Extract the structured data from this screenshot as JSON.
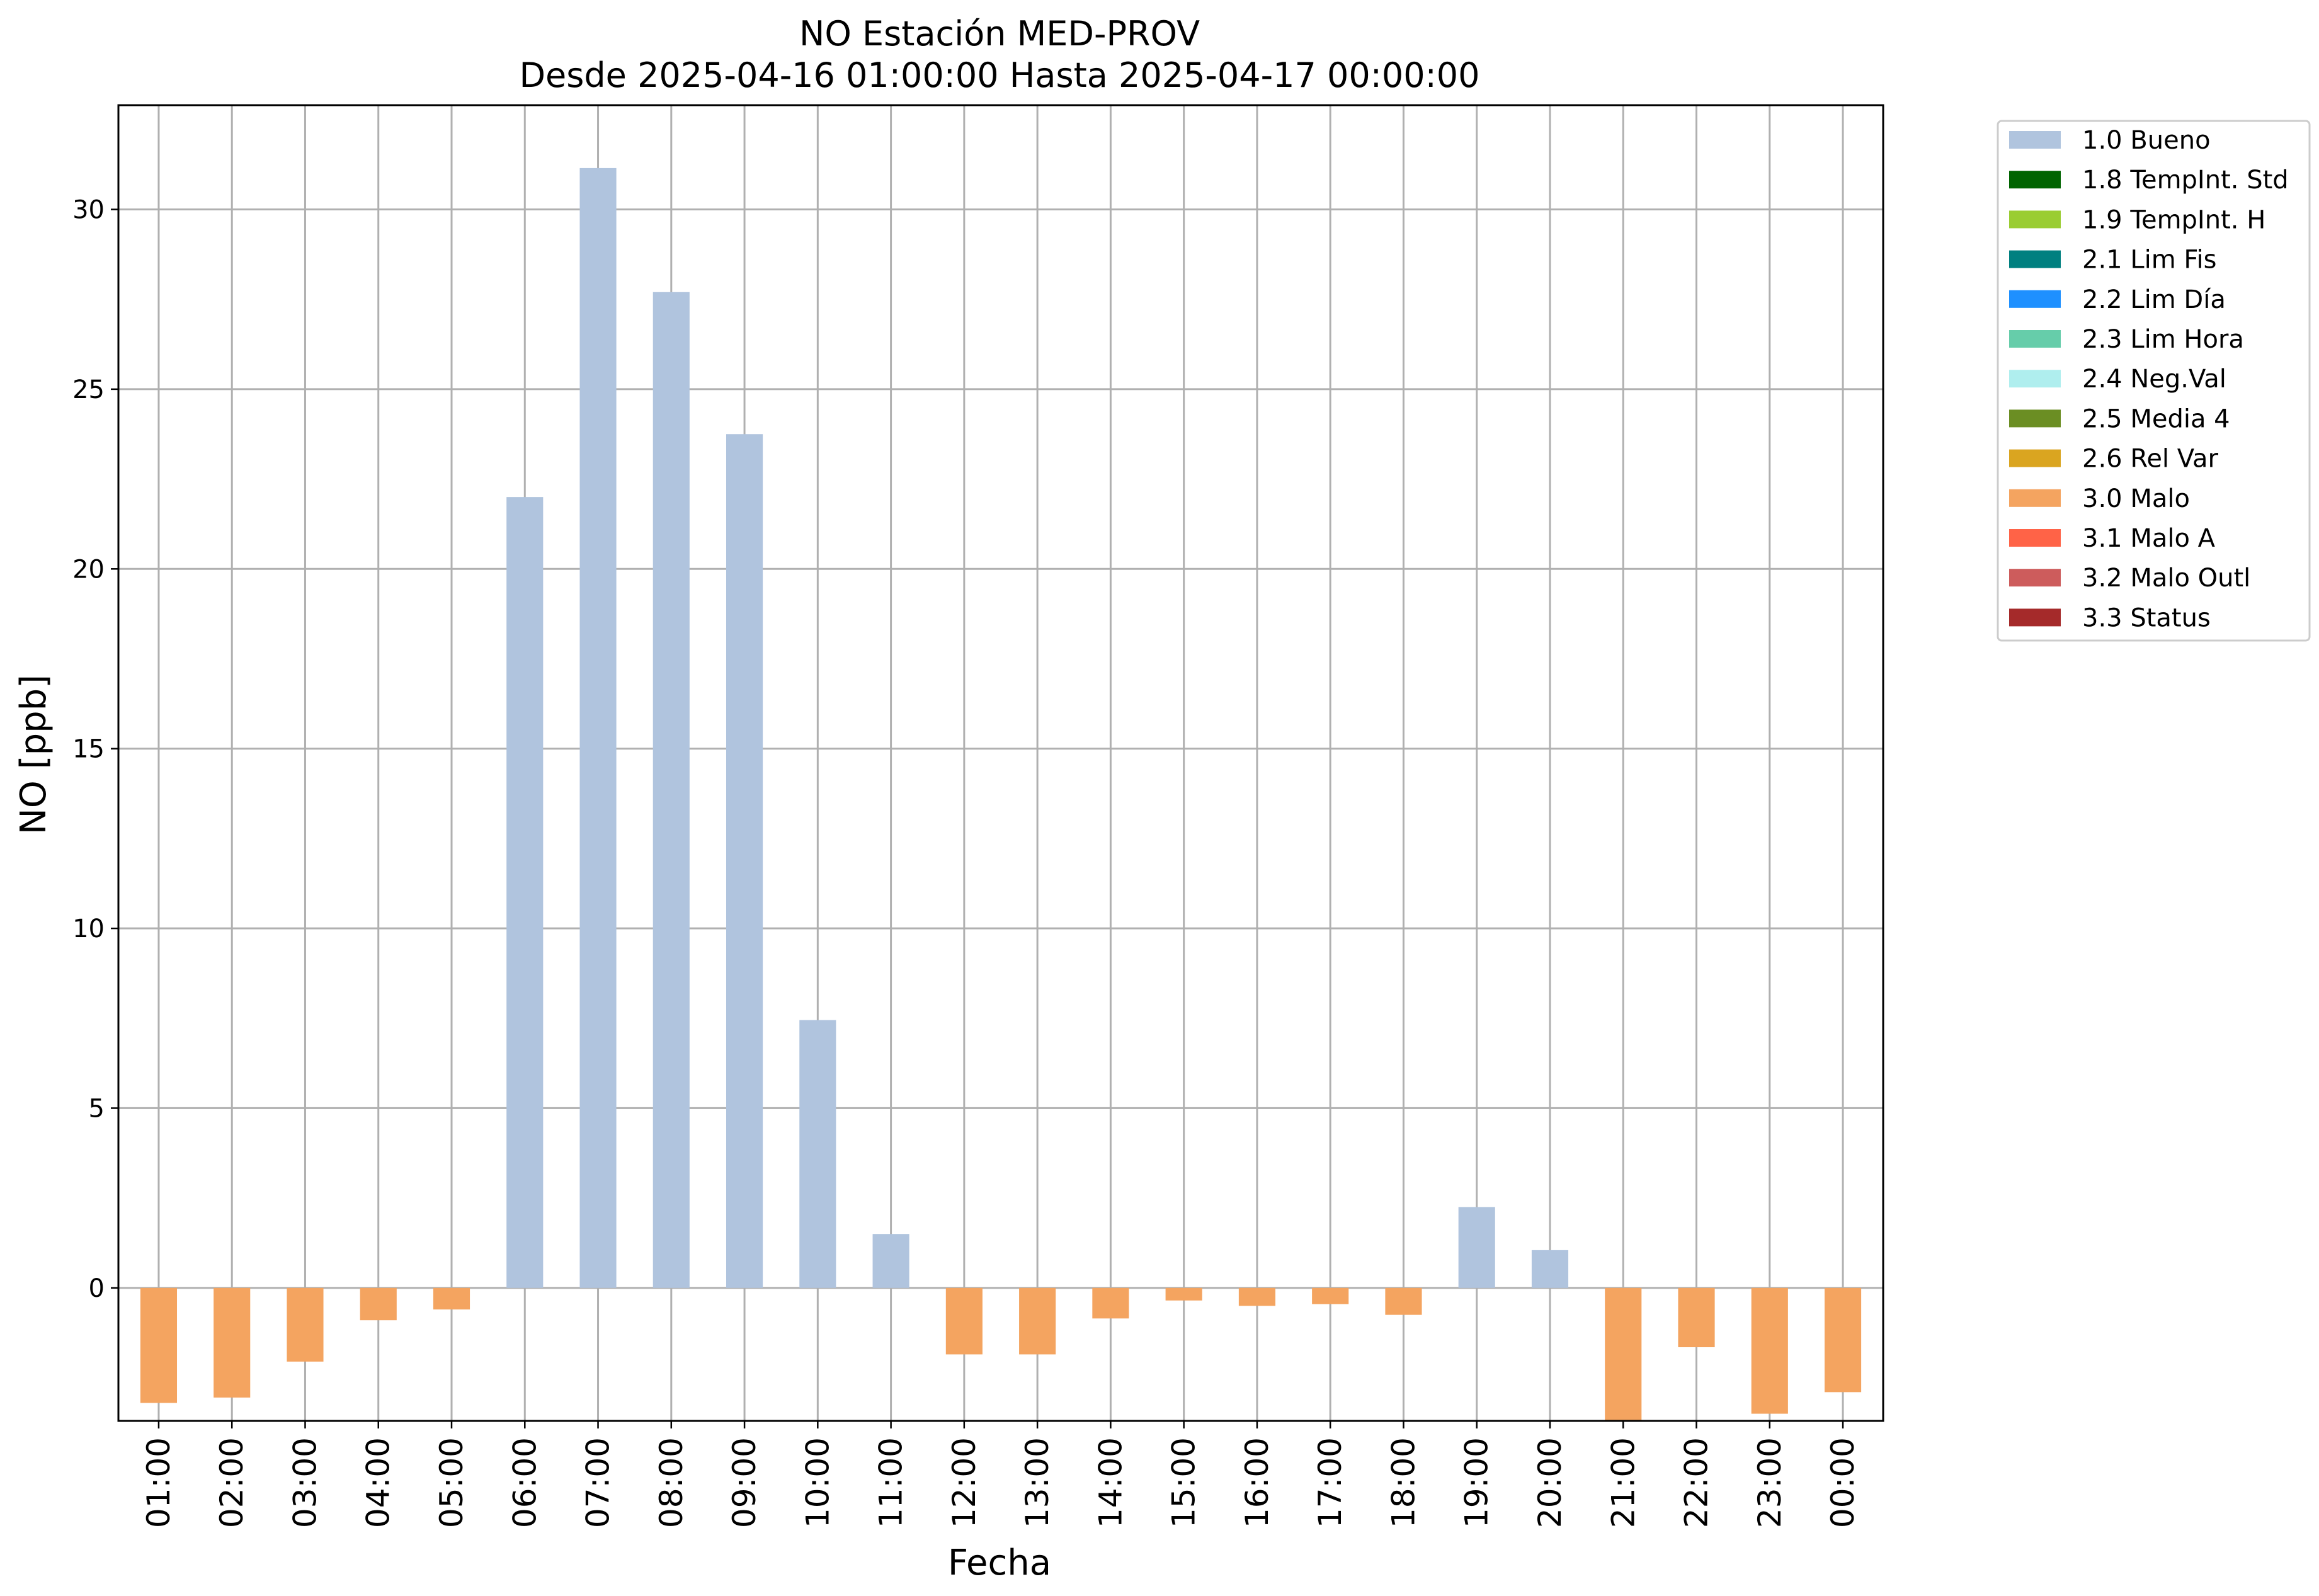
{
  "chart_data": {
    "type": "bar",
    "title": "NO Estación MED-PROV",
    "subtitle": "Desde 2025-04-16 01:00:00 Hasta 2025-04-17 00:00:00",
    "xlabel": "Fecha",
    "ylabel": "NO [ppb]",
    "ylim": [
      -3.7,
      32.9
    ],
    "yticks": [
      0,
      5,
      10,
      15,
      20,
      25,
      30
    ],
    "grid": true,
    "legend_position": "outside-top-right",
    "categories": [
      "01:00",
      "02:00",
      "03:00",
      "04:00",
      "05:00",
      "06:00",
      "07:00",
      "08:00",
      "09:00",
      "10:00",
      "11:00",
      "12:00",
      "13:00",
      "14:00",
      "15:00",
      "16:00",
      "17:00",
      "18:00",
      "19:00",
      "20:00",
      "21:00",
      "22:00",
      "23:00",
      "00:00"
    ],
    "values": [
      -3.2,
      -3.05,
      -2.05,
      -0.9,
      -0.6,
      22.0,
      31.15,
      27.7,
      23.75,
      7.45,
      1.5,
      -1.85,
      -1.85,
      -0.85,
      -0.35,
      -0.5,
      -0.45,
      -0.75,
      2.25,
      1.05,
      -3.7,
      -1.65,
      -3.5,
      -2.9
    ],
    "flags": [
      "3.0 Malo",
      "3.0 Malo",
      "3.0 Malo",
      "3.0 Malo",
      "3.0 Malo",
      "1.0 Bueno",
      "1.0 Bueno",
      "1.0 Bueno",
      "1.0 Bueno",
      "1.0 Bueno",
      "1.0 Bueno",
      "3.0 Malo",
      "3.0 Malo",
      "3.0 Malo",
      "3.0 Malo",
      "3.0 Malo",
      "3.0 Malo",
      "3.0 Malo",
      "1.0 Bueno",
      "1.0 Bueno",
      "3.0 Malo",
      "3.0 Malo",
      "3.0 Malo",
      "3.0 Malo"
    ],
    "legend": [
      {
        "label": "1.0 Bueno",
        "color": "#b0c4de"
      },
      {
        "label": "1.8 TempInt. Std",
        "color": "#006400"
      },
      {
        "label": "1.9 TempInt. H",
        "color": "#9acd32"
      },
      {
        "label": "2.1 Lim Fis",
        "color": "#008080"
      },
      {
        "label": "2.2 Lim Día",
        "color": "#1e90ff"
      },
      {
        "label": "2.3 Lim Hora",
        "color": "#66cdaa"
      },
      {
        "label": "2.4 Neg.Val",
        "color": "#afeeee"
      },
      {
        "label": "2.5 Media 4",
        "color": "#6b8e23"
      },
      {
        "label": "2.6 Rel Var",
        "color": "#daa520"
      },
      {
        "label": "3.0 Malo",
        "color": "#f4a460"
      },
      {
        "label": "3.1 Malo A",
        "color": "#ff6347"
      },
      {
        "label": "3.2 Malo Outl",
        "color": "#cd5c5c"
      },
      {
        "label": "3.3 Status",
        "color": "#a52a2a"
      }
    ]
  }
}
